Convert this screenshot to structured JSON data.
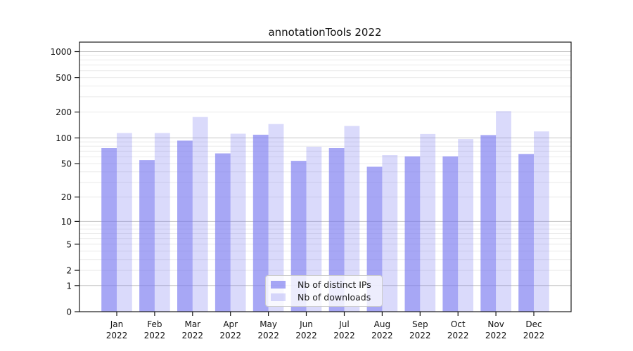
{
  "title": "annotationTools 2022",
  "chart_data": {
    "type": "bar",
    "title": "annotationTools 2022",
    "xlabel": "",
    "ylabel": "",
    "yscale": "symlog",
    "ylim": [
      0,
      1286
    ],
    "yticks": [
      0,
      1,
      2,
      5,
      10,
      20,
      50,
      100,
      200,
      500,
      1000
    ],
    "grid": true,
    "grid_major_color": "#c4c4c4",
    "grid_minor_color": "#eaeaea",
    "axis_color": "#1a1a1a",
    "bar_base_color": "#7878f0",
    "categories": [
      "Jan 2022",
      "Feb 2022",
      "Mar 2022",
      "Apr 2022",
      "May 2022",
      "Jun 2022",
      "Jul 2022",
      "Aug 2022",
      "Sep 2022",
      "Oct 2022",
      "Nov 2022",
      "Dec 2022"
    ],
    "series": [
      {
        "name": "Nb of distinct IPs",
        "color": "#7878f0",
        "opacity": 0.65,
        "values": [
          76,
          55,
          93,
          66,
          109,
          54,
          76,
          46,
          61,
          61,
          108,
          65
        ]
      },
      {
        "name": "Nb of downloads",
        "color": "#7878f0",
        "opacity": 0.27,
        "values": [
          114,
          114,
          175,
          112,
          145,
          79,
          138,
          63,
          111,
          97,
          205,
          119
        ]
      }
    ],
    "legend_position": "lower center"
  }
}
